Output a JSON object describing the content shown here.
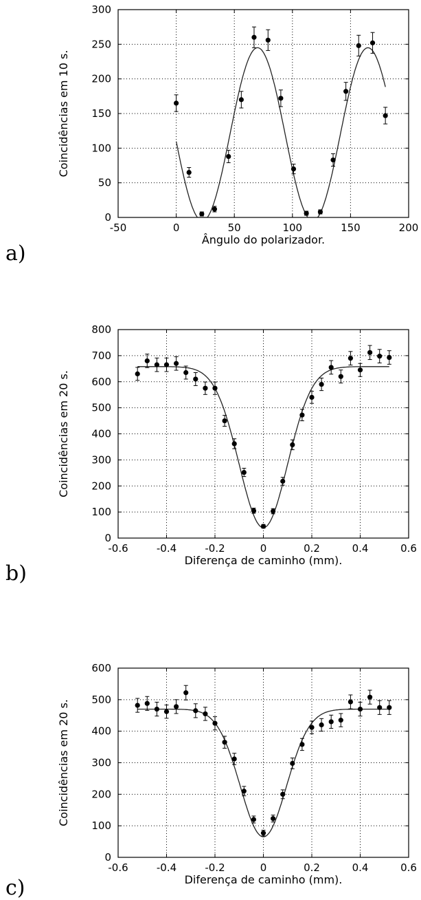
{
  "chart_data": [
    {
      "panel_label": "a)",
      "type": "scatter",
      "xlabel": "Ângulo do polarizador.",
      "ylabel": "Coincidências em 10 s.",
      "xlim": [
        -50,
        200
      ],
      "ylim": [
        0,
        300
      ],
      "x_ticks": [
        -50,
        0,
        50,
        100,
        150,
        200
      ],
      "y_ticks": [
        0,
        50,
        100,
        150,
        200,
        250,
        300
      ],
      "grid": true,
      "series": [
        {
          "points": [
            {
              "x": 0,
              "y": 165,
              "err": 12
            },
            {
              "x": 11,
              "y": 65,
              "err": 7
            },
            {
              "x": 22,
              "y": 5,
              "err": 3
            },
            {
              "x": 33,
              "y": 12,
              "err": 4
            },
            {
              "x": 45,
              "y": 88,
              "err": 9
            },
            {
              "x": 56,
              "y": 170,
              "err": 12
            },
            {
              "x": 67,
              "y": 260,
              "err": 15
            },
            {
              "x": 79,
              "y": 256,
              "err": 15
            },
            {
              "x": 90,
              "y": 172,
              "err": 12
            },
            {
              "x": 101,
              "y": 70,
              "err": 7
            },
            {
              "x": 112,
              "y": 6,
              "err": 3
            },
            {
              "x": 124,
              "y": 8,
              "err": 3
            },
            {
              "x": 135,
              "y": 83,
              "err": 9
            },
            {
              "x": 146,
              "y": 182,
              "err": 13
            },
            {
              "x": 157,
              "y": 248,
              "err": 15
            },
            {
              "x": 169,
              "y": 252,
              "err": 15
            },
            {
              "x": 180,
              "y": 147,
              "err": 12
            }
          ]
        }
      ],
      "fit": {
        "kind": "cosine",
        "amplitude": 125,
        "offset": 120,
        "period": 95,
        "phase": 70,
        "xrange": [
          0,
          180
        ]
      }
    },
    {
      "panel_label": "b)",
      "type": "scatter",
      "xlabel": "Diferença de caminho (mm).",
      "ylabel": "Coincidências em 20 s.",
      "xlim": [
        -0.6,
        0.6
      ],
      "ylim": [
        0,
        800
      ],
      "x_ticks": [
        -0.6,
        -0.4,
        -0.2,
        0,
        0.2,
        0.4,
        0.6
      ],
      "y_ticks": [
        0,
        100,
        200,
        300,
        400,
        500,
        600,
        700,
        800
      ],
      "grid": true,
      "series": [
        {
          "points": [
            {
              "x": -0.52,
              "y": 630,
              "err": 25
            },
            {
              "x": -0.48,
              "y": 680,
              "err": 26
            },
            {
              "x": -0.44,
              "y": 665,
              "err": 26
            },
            {
              "x": -0.4,
              "y": 665,
              "err": 26
            },
            {
              "x": -0.36,
              "y": 670,
              "err": 26
            },
            {
              "x": -0.32,
              "y": 635,
              "err": 25
            },
            {
              "x": -0.28,
              "y": 610,
              "err": 25
            },
            {
              "x": -0.24,
              "y": 575,
              "err": 24
            },
            {
              "x": -0.2,
              "y": 575,
              "err": 24
            },
            {
              "x": -0.16,
              "y": 450,
              "err": 21
            },
            {
              "x": -0.12,
              "y": 362,
              "err": 19
            },
            {
              "x": -0.08,
              "y": 252,
              "err": 16
            },
            {
              "x": -0.04,
              "y": 105,
              "err": 10
            },
            {
              "x": 0,
              "y": 45,
              "err": 7
            },
            {
              "x": 0.04,
              "y": 103,
              "err": 10
            },
            {
              "x": 0.08,
              "y": 218,
              "err": 15
            },
            {
              "x": 0.12,
              "y": 358,
              "err": 19
            },
            {
              "x": 0.16,
              "y": 472,
              "err": 22
            },
            {
              "x": 0.2,
              "y": 540,
              "err": 23
            },
            {
              "x": 0.24,
              "y": 590,
              "err": 24
            },
            {
              "x": 0.28,
              "y": 655,
              "err": 26
            },
            {
              "x": 0.32,
              "y": 620,
              "err": 25
            },
            {
              "x": 0.36,
              "y": 690,
              "err": 26
            },
            {
              "x": 0.4,
              "y": 645,
              "err": 25
            },
            {
              "x": 0.44,
              "y": 712,
              "err": 27
            },
            {
              "x": 0.48,
              "y": 698,
              "err": 26
            },
            {
              "x": 0.52,
              "y": 693,
              "err": 26
            }
          ]
        }
      ],
      "fit": {
        "kind": "gaussian-dip",
        "baseline": 658,
        "depth": 618,
        "sigma": 0.1,
        "xrange": [
          -0.52,
          0.52
        ]
      }
    },
    {
      "panel_label": "c)",
      "type": "scatter",
      "xlabel": "Diferença de caminho (mm).",
      "ylabel": "Coincidências em 20 s.",
      "xlim": [
        -0.6,
        0.6
      ],
      "ylim": [
        0,
        600
      ],
      "x_ticks": [
        -0.6,
        -0.4,
        -0.2,
        0,
        0.2,
        0.4,
        0.6
      ],
      "y_ticks": [
        0,
        100,
        200,
        300,
        400,
        500,
        600
      ],
      "grid": true,
      "series": [
        {
          "points": [
            {
              "x": -0.52,
              "y": 482,
              "err": 22
            },
            {
              "x": -0.48,
              "y": 488,
              "err": 22
            },
            {
              "x": -0.44,
              "y": 470,
              "err": 22
            },
            {
              "x": -0.4,
              "y": 462,
              "err": 21
            },
            {
              "x": -0.36,
              "y": 478,
              "err": 22
            },
            {
              "x": -0.32,
              "y": 522,
              "err": 23
            },
            {
              "x": -0.28,
              "y": 465,
              "err": 22
            },
            {
              "x": -0.24,
              "y": 455,
              "err": 21
            },
            {
              "x": -0.2,
              "y": 425,
              "err": 21
            },
            {
              "x": -0.16,
              "y": 365,
              "err": 19
            },
            {
              "x": -0.12,
              "y": 312,
              "err": 18
            },
            {
              "x": -0.08,
              "y": 210,
              "err": 15
            },
            {
              "x": -0.04,
              "y": 120,
              "err": 11
            },
            {
              "x": 0,
              "y": 77,
              "err": 9
            },
            {
              "x": 0.04,
              "y": 123,
              "err": 11
            },
            {
              "x": 0.08,
              "y": 200,
              "err": 14
            },
            {
              "x": 0.12,
              "y": 298,
              "err": 17
            },
            {
              "x": 0.16,
              "y": 358,
              "err": 19
            },
            {
              "x": 0.2,
              "y": 412,
              "err": 20
            },
            {
              "x": 0.24,
              "y": 420,
              "err": 20
            },
            {
              "x": 0.28,
              "y": 430,
              "err": 21
            },
            {
              "x": 0.32,
              "y": 435,
              "err": 21
            },
            {
              "x": 0.36,
              "y": 493,
              "err": 22
            },
            {
              "x": 0.4,
              "y": 470,
              "err": 22
            },
            {
              "x": 0.44,
              "y": 508,
              "err": 22
            },
            {
              "x": 0.48,
              "y": 475,
              "err": 22
            },
            {
              "x": 0.52,
              "y": 475,
              "err": 22
            }
          ]
        }
      ],
      "fit": {
        "kind": "gaussian-dip",
        "baseline": 470,
        "depth": 405,
        "sigma": 0.095,
        "xrange": [
          -0.52,
          0.52
        ]
      }
    }
  ]
}
